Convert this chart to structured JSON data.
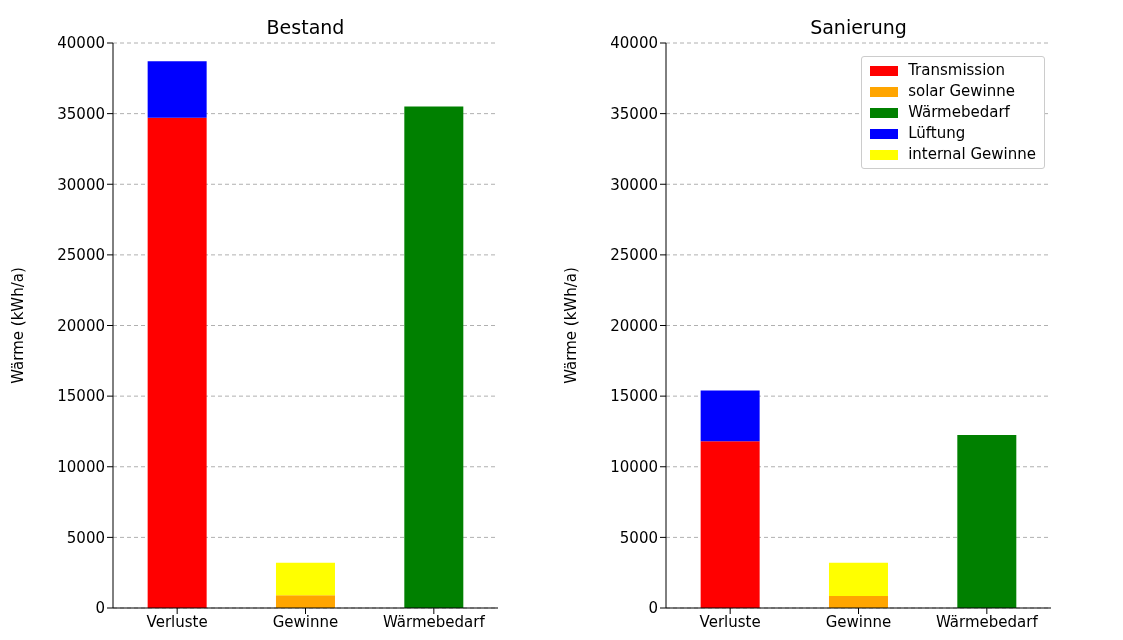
{
  "chart_data": [
    {
      "type": "bar",
      "title": "Bestand",
      "ylabel": "Wärme (kWh/a)",
      "categories": [
        "Verluste",
        "Gewinne",
        "Wärmebedarf"
      ],
      "stacked": true,
      "ylim": [
        0,
        40000
      ],
      "yticks": [
        0,
        5000,
        10000,
        15000,
        20000,
        25000,
        30000,
        35000,
        40000
      ],
      "grid": "y",
      "series": [
        {
          "color": "#ff0000",
          "values": [
            34700,
            null,
            null
          ]
        },
        {
          "color": "#ffa500",
          "values": [
            null,
            900,
            null
          ]
        },
        {
          "color": "#008000",
          "values": [
            null,
            null,
            35500
          ]
        },
        {
          "color": "#0000ff",
          "values": [
            4000,
            null,
            null
          ]
        },
        {
          "color": "#ffff00",
          "values": [
            null,
            2300,
            null
          ]
        }
      ]
    },
    {
      "type": "bar",
      "title": "Sanierung",
      "ylabel": "Wärme (kWh/a)",
      "categories": [
        "Verluste",
        "Gewinne",
        "Wärmebedarf"
      ],
      "stacked": true,
      "ylim": [
        0,
        40000
      ],
      "yticks": [
        0,
        5000,
        10000,
        15000,
        20000,
        25000,
        30000,
        35000,
        40000
      ],
      "grid": "y",
      "legend": "top right",
      "series": [
        {
          "name": "Transmission",
          "color": "#ff0000",
          "values": [
            11800,
            null,
            null
          ]
        },
        {
          "name": "solar Gewinne",
          "color": "#ffa500",
          "values": [
            null,
            850,
            null
          ]
        },
        {
          "name": "Wärmebedarf",
          "color": "#008000",
          "values": [
            null,
            null,
            12250
          ]
        },
        {
          "name": "Lüftung",
          "color": "#0000ff",
          "values": [
            3600,
            null,
            null
          ]
        },
        {
          "name": "internal Gewinne",
          "color": "#ffff00",
          "values": [
            null,
            2350,
            null
          ]
        }
      ]
    }
  ]
}
